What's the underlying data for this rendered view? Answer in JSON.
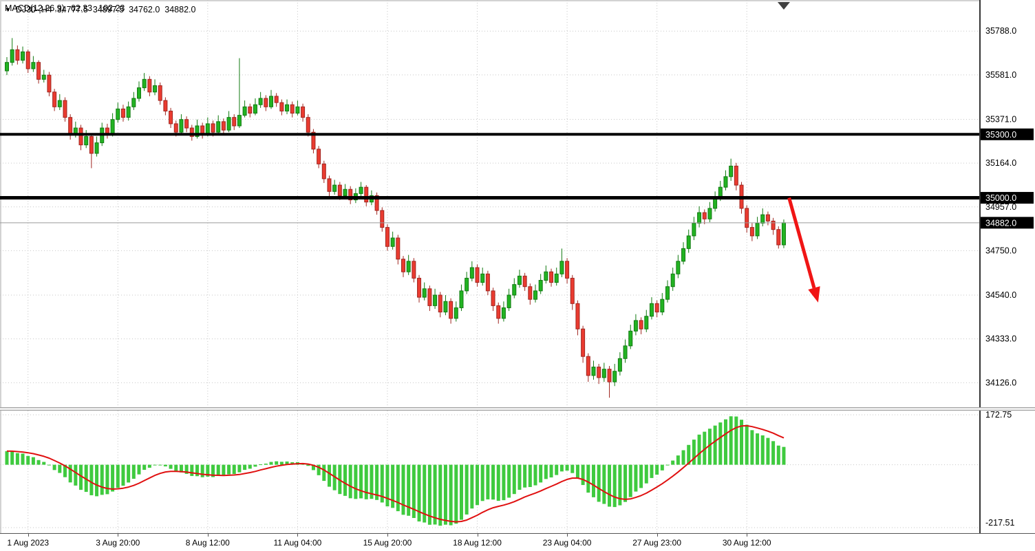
{
  "header": {
    "symbol": "DJ30-,H4",
    "open": "34777.5",
    "high": "34897.5",
    "low": "34762.0",
    "close": "34882.0"
  },
  "macd_label": {
    "name": "MACD(12,26,9)",
    "macd_value": "62.33",
    "signal_value": "102.23"
  },
  "chart_data": {
    "type": "candlestick",
    "symbol": "DJ30-",
    "timeframe": "H4",
    "price_axis": {
      "view_max": 35935,
      "view_min": 34010,
      "ticks": [
        35788.0,
        35581.0,
        35371.0,
        35164.0,
        34957.0,
        34750.0,
        34540.0,
        34333.0,
        34126.0
      ]
    },
    "time_axis": {
      "ticks": [
        {
          "i": 4,
          "label": "1 Aug 2023"
        },
        {
          "i": 21,
          "label": "3 Aug 20:00"
        },
        {
          "i": 38,
          "label": "8 Aug 12:00"
        },
        {
          "i": 55,
          "label": "11 Aug 04:00"
        },
        {
          "i": 72,
          "label": "15 Aug 20:00"
        },
        {
          "i": 89,
          "label": "18 Aug 12:00"
        },
        {
          "i": 106,
          "label": "23 Aug 04:00"
        },
        {
          "i": 123,
          "label": "27 Aug 23:00"
        },
        {
          "i": 140,
          "label": "30 Aug 12:00"
        }
      ]
    },
    "hlines": [
      {
        "price": 35300,
        "label": "35300.0",
        "width": 4
      },
      {
        "price": 35000,
        "label": "35000.0",
        "width": 5
      }
    ],
    "current_price": {
      "price": 34882,
      "label": "34882.0"
    },
    "arrow": {
      "from_i": 148,
      "from_price": 35000,
      "to_i": 153.5,
      "to_price": 34505
    },
    "shift_marker_i": 147,
    "candles": [
      [
        35600,
        35665,
        35580,
        35640
      ],
      [
        35640,
        35755,
        35625,
        35700
      ],
      [
        35700,
        35720,
        35630,
        35650
      ],
      [
        35650,
        35715,
        35635,
        35690
      ],
      [
        35690,
        35700,
        35590,
        35610
      ],
      [
        35610,
        35670,
        35595,
        35640
      ],
      [
        35640,
        35650,
        35540,
        35560
      ],
      [
        35560,
        35605,
        35545,
        35580
      ],
      [
        35580,
        35595,
        35480,
        35500
      ],
      [
        35500,
        35515,
        35410,
        35430
      ],
      [
        35430,
        35490,
        35415,
        35460
      ],
      [
        35460,
        35475,
        35360,
        35380
      ],
      [
        35380,
        35395,
        35275,
        35300
      ],
      [
        35300,
        35360,
        35285,
        35330
      ],
      [
        35330,
        35345,
        35225,
        35250
      ],
      [
        35250,
        35320,
        35235,
        35290
      ],
      [
        35290,
        35305,
        35140,
        35210
      ],
      [
        35210,
        35290,
        35195,
        35260
      ],
      [
        35260,
        35355,
        35245,
        35330
      ],
      [
        35330,
        35350,
        35280,
        35300
      ],
      [
        35300,
        35400,
        35290,
        35370
      ],
      [
        35370,
        35450,
        35355,
        35420
      ],
      [
        35420,
        35440,
        35360,
        35380
      ],
      [
        35380,
        35455,
        35365,
        35430
      ],
      [
        35430,
        35500,
        35415,
        35470
      ],
      [
        35470,
        35550,
        35455,
        35520
      ],
      [
        35520,
        35590,
        35505,
        35560
      ],
      [
        35560,
        35575,
        35480,
        35500
      ],
      [
        35500,
        35560,
        35485,
        35530
      ],
      [
        35530,
        35545,
        35440,
        35460
      ],
      [
        35460,
        35475,
        35390,
        35410
      ],
      [
        35410,
        35425,
        35330,
        35350
      ],
      [
        35350,
        35365,
        35290,
        35310
      ],
      [
        35310,
        35395,
        35300,
        35370
      ],
      [
        35370,
        35385,
        35310,
        35330
      ],
      [
        35330,
        35345,
        35270,
        35290
      ],
      [
        35290,
        35370,
        35280,
        35340
      ],
      [
        35340,
        35355,
        35280,
        35300
      ],
      [
        35300,
        35380,
        35290,
        35350
      ],
      [
        35350,
        35365,
        35290,
        35310
      ],
      [
        35310,
        35390,
        35300,
        35360
      ],
      [
        35360,
        35375,
        35300,
        35320
      ],
      [
        35320,
        35410,
        35310,
        35380
      ],
      [
        35380,
        35395,
        35320,
        35340
      ],
      [
        35340,
        35660,
        35330,
        35390
      ],
      [
        35390,
        35460,
        35380,
        35430
      ],
      [
        35430,
        35445,
        35380,
        35400
      ],
      [
        35400,
        35470,
        35390,
        35440
      ],
      [
        35440,
        35500,
        35425,
        35470
      ],
      [
        35470,
        35485,
        35410,
        35430
      ],
      [
        35430,
        35510,
        35420,
        35480
      ],
      [
        35480,
        35495,
        35430,
        35450
      ],
      [
        35450,
        35465,
        35390,
        35410
      ],
      [
        35410,
        35465,
        35395,
        35440
      ],
      [
        35440,
        35455,
        35380,
        35400
      ],
      [
        35400,
        35460,
        35390,
        35430
      ],
      [
        35430,
        35445,
        35360,
        35380
      ],
      [
        35380,
        35395,
        35290,
        35310
      ],
      [
        35310,
        35325,
        35210,
        35230
      ],
      [
        35230,
        35245,
        35140,
        35160
      ],
      [
        35160,
        35175,
        35070,
        35090
      ],
      [
        35090,
        35105,
        35005,
        35030
      ],
      [
        35030,
        35085,
        35015,
        35060
      ],
      [
        35060,
        35075,
        34990,
        35010
      ],
      [
        35010,
        35065,
        34995,
        35040
      ],
      [
        35040,
        35055,
        34970,
        34990
      ],
      [
        34990,
        35045,
        34975,
        35020
      ],
      [
        35020,
        35075,
        35005,
        35050
      ],
      [
        35050,
        35060,
        34960,
        34980
      ],
      [
        34980,
        35035,
        34965,
        35010
      ],
      [
        35010,
        35025,
        34920,
        34940
      ],
      [
        34940,
        34955,
        34840,
        34860
      ],
      [
        34860,
        34875,
        34750,
        34770
      ],
      [
        34770,
        34840,
        34755,
        34810
      ],
      [
        34810,
        34825,
        34685,
        34710
      ],
      [
        34710,
        34725,
        34625,
        34650
      ],
      [
        34650,
        34730,
        34635,
        34700
      ],
      [
        34700,
        34715,
        34600,
        34620
      ],
      [
        34620,
        34635,
        34505,
        34530
      ],
      [
        34530,
        34600,
        34515,
        34570
      ],
      [
        34570,
        34585,
        34465,
        34490
      ],
      [
        34490,
        34570,
        34475,
        34540
      ],
      [
        34540,
        34555,
        34435,
        34460
      ],
      [
        34460,
        34540,
        34445,
        34510
      ],
      [
        34510,
        34525,
        34405,
        34430
      ],
      [
        34430,
        34510,
        34415,
        34480
      ],
      [
        34480,
        34590,
        34465,
        34560
      ],
      [
        34560,
        34650,
        34545,
        34620
      ],
      [
        34620,
        34700,
        34605,
        34670
      ],
      [
        34670,
        34685,
        34580,
        34600
      ],
      [
        34600,
        34670,
        34585,
        34640
      ],
      [
        34640,
        34655,
        34540,
        34560
      ],
      [
        34560,
        34575,
        34465,
        34490
      ],
      [
        34490,
        34505,
        34405,
        34430
      ],
      [
        34430,
        34510,
        34415,
        34480
      ],
      [
        34480,
        34570,
        34465,
        34540
      ],
      [
        34540,
        34620,
        34525,
        34590
      ],
      [
        34590,
        34660,
        34575,
        34630
      ],
      [
        34630,
        34645,
        34560,
        34580
      ],
      [
        34580,
        34595,
        34495,
        34520
      ],
      [
        34520,
        34590,
        34505,
        34560
      ],
      [
        34560,
        34640,
        34545,
        34610
      ],
      [
        34610,
        34680,
        34595,
        34650
      ],
      [
        34650,
        34665,
        34580,
        34600
      ],
      [
        34600,
        34670,
        34585,
        34640
      ],
      [
        34640,
        34760,
        34625,
        34700
      ],
      [
        34700,
        34715,
        34595,
        34620
      ],
      [
        34620,
        34635,
        34470,
        34500
      ],
      [
        34500,
        34515,
        34350,
        34380
      ],
      [
        34380,
        34395,
        34220,
        34250
      ],
      [
        34250,
        34265,
        34130,
        34160
      ],
      [
        34160,
        34230,
        34140,
        34200
      ],
      [
        34200,
        34215,
        34120,
        34150
      ],
      [
        34150,
        34220,
        34130,
        34190
      ],
      [
        34190,
        34205,
        34055,
        34130
      ],
      [
        34130,
        34215,
        34110,
        34180
      ],
      [
        34180,
        34270,
        34160,
        34240
      ],
      [
        34240,
        34330,
        34220,
        34300
      ],
      [
        34300,
        34400,
        34285,
        34370
      ],
      [
        34370,
        34450,
        34350,
        34420
      ],
      [
        34420,
        34435,
        34355,
        34380
      ],
      [
        34380,
        34470,
        34365,
        34440
      ],
      [
        34440,
        34530,
        34425,
        34500
      ],
      [
        34500,
        34515,
        34435,
        34460
      ],
      [
        34460,
        34550,
        34445,
        34520
      ],
      [
        34520,
        34610,
        34505,
        34580
      ],
      [
        34580,
        34670,
        34560,
        34640
      ],
      [
        34640,
        34730,
        34620,
        34700
      ],
      [
        34700,
        34790,
        34685,
        34760
      ],
      [
        34760,
        34850,
        34740,
        34820
      ],
      [
        34820,
        34910,
        34800,
        34880
      ],
      [
        34880,
        34960,
        34860,
        34930
      ],
      [
        34930,
        34945,
        34875,
        34900
      ],
      [
        34900,
        34980,
        34885,
        34950
      ],
      [
        34950,
        35030,
        34935,
        35000
      ],
      [
        35000,
        35080,
        34985,
        35050
      ],
      [
        35050,
        35130,
        35035,
        35100
      ],
      [
        35100,
        35185,
        35080,
        35150
      ],
      [
        35150,
        35165,
        35035,
        35060
      ],
      [
        35060,
        35075,
        34925,
        34950
      ],
      [
        34950,
        34965,
        34835,
        34860
      ],
      [
        34860,
        34880,
        34795,
        34820
      ],
      [
        34820,
        34910,
        34805,
        34880
      ],
      [
        34880,
        34950,
        34865,
        34920
      ],
      [
        34920,
        34935,
        34870,
        34890
      ],
      [
        34890,
        34905,
        34825,
        34850
      ],
      [
        34850,
        34865,
        34760,
        34777.5
      ],
      [
        34777.5,
        34897.5,
        34762,
        34882
      ]
    ],
    "macd": {
      "params": [
        12,
        26,
        9
      ],
      "axis_max": 172.75,
      "axis_min": -217.51,
      "axis_labels": [
        "172.75",
        "-217.51"
      ],
      "macd_value": 62.33,
      "signal_value": 102.23
    },
    "colors": {
      "up": "#22b322",
      "up_stroke": "#117a11",
      "down": "#ea3b30",
      "down_stroke": "#a02620",
      "hist": "#3fca3f",
      "signal": "#e01010",
      "grid": "#c6c6c6",
      "hline": "#000000",
      "arrow": "#f01515",
      "axis_border": "#333333",
      "tag_bg": "#000000",
      "tag_text": "#ffffff",
      "current_line": "#9a9a9a",
      "marker": "#3f3f3f"
    }
  }
}
